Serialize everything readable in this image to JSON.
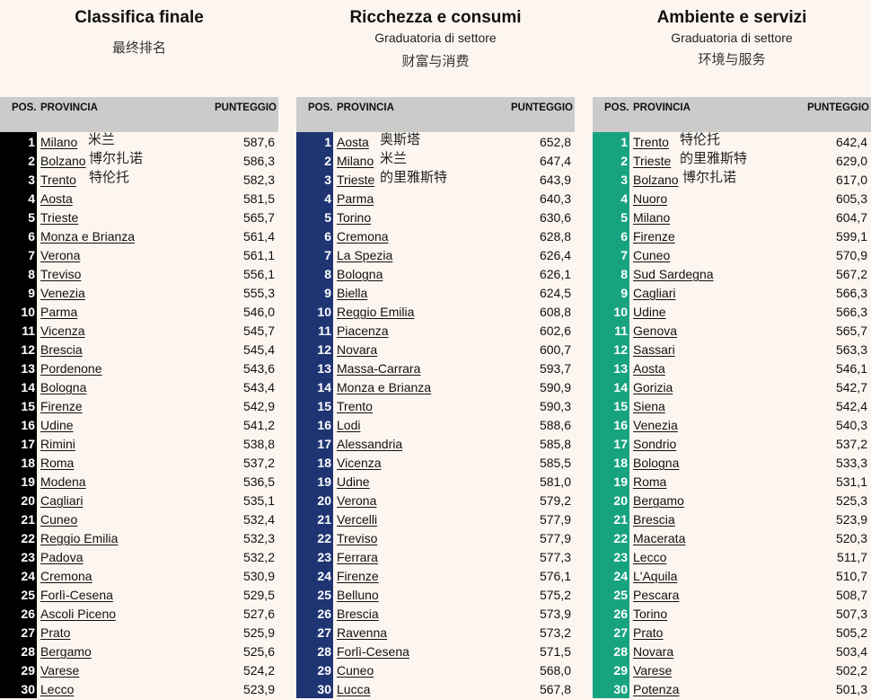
{
  "colors": {
    "panel1_rank": "#000000",
    "panel2_rank": "#1f3473",
    "panel3_rank": "#17a37f",
    "header_bg": "#cbcbcb",
    "page_bg": "#fdf6f0"
  },
  "panels": [
    {
      "title": "Classifica finale",
      "subtitle": "",
      "chinese": "最终排名",
      "headers": {
        "pos": "POS.",
        "province": "PROVINCIA",
        "score": "PUNTEGGIO"
      },
      "rows": [
        {
          "rank": "1",
          "name": "Milano",
          "cn": "米兰",
          "score": "587,6"
        },
        {
          "rank": "2",
          "name": "Bolzano",
          "cn": "博尔扎诺",
          "score": "586,3"
        },
        {
          "rank": "3",
          "name": "Trento",
          "cn": "特伦托",
          "score": "582,3"
        },
        {
          "rank": "4",
          "name": "Aosta",
          "score": "581,5"
        },
        {
          "rank": "5",
          "name": "Trieste",
          "score": "565,7"
        },
        {
          "rank": "6",
          "name": "Monza e Brianza",
          "score": "561,4"
        },
        {
          "rank": "7",
          "name": "Verona",
          "score": "561,1"
        },
        {
          "rank": "8",
          "name": "Treviso",
          "score": "556,1"
        },
        {
          "rank": "9",
          "name": "Venezia",
          "score": "555,3"
        },
        {
          "rank": "10",
          "name": "Parma",
          "score": "546,0"
        },
        {
          "rank": "11",
          "name": "Vicenza",
          "score": "545,7"
        },
        {
          "rank": "12",
          "name": "Brescia",
          "score": "545,4"
        },
        {
          "rank": "13",
          "name": "Pordenone",
          "score": "543,6"
        },
        {
          "rank": "14",
          "name": "Bologna",
          "score": "543,4"
        },
        {
          "rank": "15",
          "name": "Firenze",
          "score": "542,9"
        },
        {
          "rank": "16",
          "name": "Udine",
          "score": "541,2"
        },
        {
          "rank": "17",
          "name": "Rimini",
          "score": "538,8"
        },
        {
          "rank": "18",
          "name": "Roma",
          "score": "537,2"
        },
        {
          "rank": "19",
          "name": "Modena",
          "score": "536,5"
        },
        {
          "rank": "20",
          "name": "Cagliari",
          "score": "535,1"
        },
        {
          "rank": "21",
          "name": "Cuneo",
          "score": "532,4"
        },
        {
          "rank": "22",
          "name": "Reggio Emilia",
          "score": "532,3"
        },
        {
          "rank": "23",
          "name": "Padova",
          "score": "532,2"
        },
        {
          "rank": "24",
          "name": "Cremona",
          "score": "530,9"
        },
        {
          "rank": "25",
          "name": "Forlì-Cesena",
          "score": "529,5"
        },
        {
          "rank": "26",
          "name": "Ascoli Piceno",
          "score": "527,6"
        },
        {
          "rank": "27",
          "name": "Prato",
          "score": "525,9"
        },
        {
          "rank": "28",
          "name": "Bergamo",
          "score": "525,6"
        },
        {
          "rank": "29",
          "name": "Varese",
          "score": "524,2"
        },
        {
          "rank": "30",
          "name": "Lecco",
          "score": "523,9"
        }
      ]
    },
    {
      "title": "Ricchezza e consumi",
      "subtitle": "Graduatoria di settore",
      "chinese": "财富与消费",
      "headers": {
        "pos": "POS.",
        "province": "PROVINCIA",
        "score": "PUNTEGGIO"
      },
      "rows": [
        {
          "rank": "1",
          "name": "Aosta",
          "cn": "奥斯塔",
          "score": "652,8"
        },
        {
          "rank": "2",
          "name": "Milano",
          "cn": "米兰",
          "score": "647,4"
        },
        {
          "rank": "3",
          "name": "Trieste",
          "cn": "的里雅斯特",
          "score": "643,9"
        },
        {
          "rank": "4",
          "name": "Parma",
          "score": "640,3"
        },
        {
          "rank": "5",
          "name": "Torino",
          "score": "630,6"
        },
        {
          "rank": "6",
          "name": "Cremona",
          "score": "628,8"
        },
        {
          "rank": "7",
          "name": "La Spezia",
          "score": "626,4"
        },
        {
          "rank": "8",
          "name": "Bologna",
          "score": "626,1"
        },
        {
          "rank": "9",
          "name": "Biella",
          "score": "624,5"
        },
        {
          "rank": "10",
          "name": "Reggio Emilia",
          "score": "608,8"
        },
        {
          "rank": "11",
          "name": "Piacenza",
          "score": "602,6"
        },
        {
          "rank": "12",
          "name": "Novara",
          "score": "600,7"
        },
        {
          "rank": "13",
          "name": "Massa-Carrara",
          "score": "593,7"
        },
        {
          "rank": "14",
          "name": "Monza e Brianza",
          "score": "590,9"
        },
        {
          "rank": "15",
          "name": "Trento",
          "score": "590,3"
        },
        {
          "rank": "16",
          "name": "Lodi",
          "score": "588,6"
        },
        {
          "rank": "17",
          "name": "Alessandria",
          "score": "585,8"
        },
        {
          "rank": "18",
          "name": "Vicenza",
          "score": "585,5"
        },
        {
          "rank": "19",
          "name": "Udine",
          "score": "581,0"
        },
        {
          "rank": "20",
          "name": "Verona",
          "score": "579,2"
        },
        {
          "rank": "21",
          "name": "Vercelli",
          "score": "577,9"
        },
        {
          "rank": "22",
          "name": "Treviso",
          "score": "577,9"
        },
        {
          "rank": "23",
          "name": "Ferrara",
          "score": "577,3"
        },
        {
          "rank": "24",
          "name": "Firenze",
          "score": "576,1"
        },
        {
          "rank": "25",
          "name": "Belluno",
          "score": "575,2"
        },
        {
          "rank": "26",
          "name": "Brescia",
          "score": "573,9"
        },
        {
          "rank": "27",
          "name": "Ravenna",
          "score": "573,2"
        },
        {
          "rank": "28",
          "name": "Forlì-Cesena",
          "score": "571,5"
        },
        {
          "rank": "29",
          "name": "Cuneo",
          "score": "568,0"
        },
        {
          "rank": "30",
          "name": "Lucca",
          "score": "567,8"
        }
      ]
    },
    {
      "title": "Ambiente e servizi",
      "subtitle": "Graduatoria di settore",
      "chinese": "环境与服务",
      "headers": {
        "pos": "POS.",
        "province": "PROVINCIA",
        "score": "PUNTEGGIO"
      },
      "rows": [
        {
          "rank": "1",
          "name": "Trento",
          "cn": "特伦托",
          "score": "642,4"
        },
        {
          "rank": "2",
          "name": "Trieste",
          "cn": "的里雅斯特",
          "score": "629,0"
        },
        {
          "rank": "3",
          "name": "Bolzano",
          "cn": "博尔扎诺",
          "score": "617,0"
        },
        {
          "rank": "4",
          "name": "Nuoro",
          "score": "605,3"
        },
        {
          "rank": "5",
          "name": "Milano",
          "score": "604,7"
        },
        {
          "rank": "6",
          "name": "Firenze",
          "score": "599,1"
        },
        {
          "rank": "7",
          "name": "Cuneo",
          "score": "570,9"
        },
        {
          "rank": "8",
          "name": "Sud Sardegna",
          "score": "567,2"
        },
        {
          "rank": "9",
          "name": "Cagliari",
          "score": "566,3"
        },
        {
          "rank": "10",
          "name": "Udine",
          "score": "566,3"
        },
        {
          "rank": "11",
          "name": "Genova",
          "score": "565,7"
        },
        {
          "rank": "12",
          "name": "Sassari",
          "score": "563,3"
        },
        {
          "rank": "13",
          "name": "Aosta",
          "score": "546,1"
        },
        {
          "rank": "14",
          "name": "Gorizia",
          "score": "542,7"
        },
        {
          "rank": "15",
          "name": "Siena",
          "score": "542,4"
        },
        {
          "rank": "16",
          "name": "Venezia",
          "score": "540,3"
        },
        {
          "rank": "17",
          "name": "Sondrio",
          "score": "537,2"
        },
        {
          "rank": "18",
          "name": "Bologna",
          "score": "533,3"
        },
        {
          "rank": "19",
          "name": "Roma",
          "score": "531,1"
        },
        {
          "rank": "20",
          "name": "Bergamo",
          "score": "525,3"
        },
        {
          "rank": "21",
          "name": "Brescia",
          "score": "523,9"
        },
        {
          "rank": "22",
          "name": "Macerata",
          "score": "520,3"
        },
        {
          "rank": "23",
          "name": "Lecco",
          "score": "511,7"
        },
        {
          "rank": "24",
          "name": "L'Aquila",
          "score": "510,7"
        },
        {
          "rank": "25",
          "name": "Pescara",
          "score": "508,7"
        },
        {
          "rank": "26",
          "name": "Torino",
          "score": "507,3"
        },
        {
          "rank": "27",
          "name": "Prato",
          "score": "505,2"
        },
        {
          "rank": "28",
          "name": "Novara",
          "score": "503,4"
        },
        {
          "rank": "29",
          "name": "Varese",
          "score": "502,2"
        },
        {
          "rank": "30",
          "name": "Potenza",
          "score": "501,3"
        }
      ]
    }
  ]
}
